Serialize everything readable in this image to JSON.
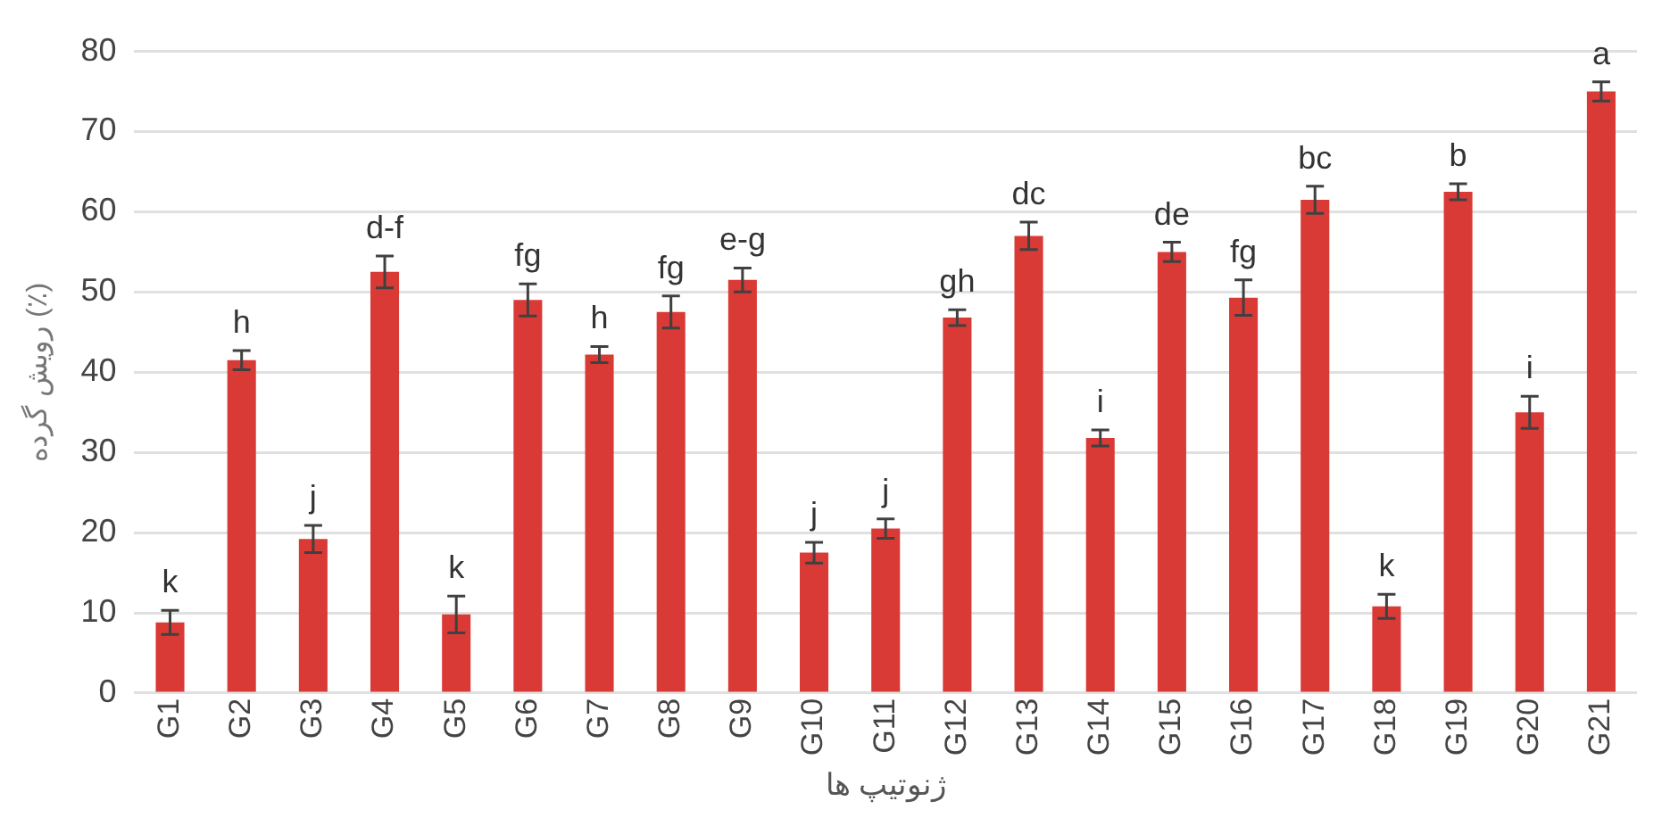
{
  "chart_data": {
    "type": "bar",
    "ylabel": "رویش گرده (٪)",
    "xlabel": "ژنوتیپ ها",
    "categories": [
      "G1",
      "G2",
      "G3",
      "G4",
      "G5",
      "G6",
      "G7",
      "G8",
      "G9",
      "G10",
      "G11",
      "G12",
      "G13",
      "G14",
      "G15",
      "G16",
      "G17",
      "G18",
      "G19",
      "G20",
      "G21"
    ],
    "series": [
      {
        "color": "#d93a36",
        "values": [
          8.8,
          41.5,
          19.2,
          52.5,
          9.8,
          49,
          42.2,
          47.5,
          51.5,
          17.5,
          20.5,
          46.8,
          57,
          31.8,
          55,
          49.3,
          61.5,
          10.8,
          62.5,
          35,
          75
        ],
        "errors": [
          1.5,
          1.2,
          1.7,
          2,
          2.3,
          2,
          1,
          2,
          1.5,
          1.3,
          1.2,
          1,
          1.7,
          1,
          1.2,
          2.2,
          1.7,
          1.5,
          1,
          2,
          1.2
        ]
      }
    ],
    "ylim": [
      0,
      80
    ],
    "yticks": [
      0,
      10,
      20,
      30,
      40,
      50,
      60,
      70,
      80
    ],
    "grid": "y",
    "legend": false,
    "annotations": [
      {
        "text": "k",
        "x": "G1",
        "y": 10.3
      },
      {
        "text": "h",
        "x": "G2",
        "y": 42.7
      },
      {
        "text": "j",
        "x": "G3",
        "y": 20.9
      },
      {
        "text": "d-f",
        "x": "G4",
        "y": 54.5
      },
      {
        "text": "k",
        "x": "G5",
        "y": 12.1
      },
      {
        "text": "fg",
        "x": "G6",
        "y": 51
      },
      {
        "text": "h",
        "x": "G7",
        "y": 43.2
      },
      {
        "text": "fg",
        "x": "G8",
        "y": 49.5
      },
      {
        "text": "e-g",
        "x": "G9",
        "y": 53
      },
      {
        "text": "j",
        "x": "G10",
        "y": 18.8
      },
      {
        "text": "j",
        "x": "G11",
        "y": 21.7
      },
      {
        "text": "gh",
        "x": "G12",
        "y": 47.8
      },
      {
        "text": "dc",
        "x": "G13",
        "y": 58.7
      },
      {
        "text": "i",
        "x": "G14",
        "y": 32.8
      },
      {
        "text": "de",
        "x": "G15",
        "y": 56.2
      },
      {
        "text": "fg",
        "x": "G16",
        "y": 51.5
      },
      {
        "text": "bc",
        "x": "G17",
        "y": 63.2
      },
      {
        "text": "k",
        "x": "G18",
        "y": 12.3
      },
      {
        "text": "b",
        "x": "G19",
        "y": 63.5
      },
      {
        "text": "i",
        "x": "G20",
        "y": 37
      },
      {
        "text": "a",
        "x": "G21",
        "y": 76.2
      }
    ]
  }
}
